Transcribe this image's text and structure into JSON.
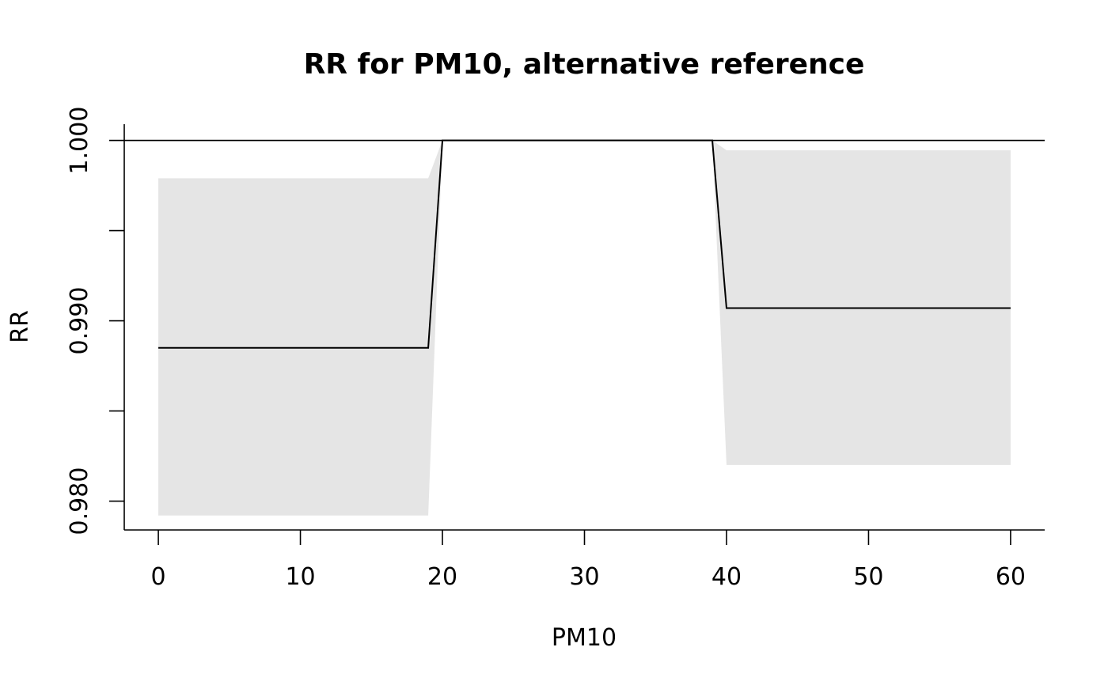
{
  "chart_data": {
    "type": "line",
    "title": "RR for PM10, alternative reference",
    "xlabel": "PM10",
    "ylabel": "RR",
    "xlim": [
      -2.4,
      62.4
    ],
    "ylim": [
      0.9784,
      1.0009
    ],
    "x_ticks": [
      {
        "value": 0,
        "label": "0"
      },
      {
        "value": 10,
        "label": "10"
      },
      {
        "value": 20,
        "label": "20"
      },
      {
        "value": 30,
        "label": "30"
      },
      {
        "value": 40,
        "label": "40"
      },
      {
        "value": 50,
        "label": "50"
      },
      {
        "value": 60,
        "label": "60"
      }
    ],
    "y_ticks": [
      {
        "value": 0.98,
        "label": "0.980"
      },
      {
        "value": 0.985,
        "label": ""
      },
      {
        "value": 0.99,
        "label": "0.990"
      },
      {
        "value": 0.995,
        "label": ""
      },
      {
        "value": 1.0,
        "label": "1.000"
      }
    ],
    "reference_line": 1.0,
    "series": [
      {
        "x": [
          0,
          19,
          20,
          39,
          40,
          60
        ],
        "y": [
          0.9885,
          0.9885,
          1.0,
          1.0,
          0.9907,
          0.9907
        ],
        "lower": [
          0.9792,
          0.9792,
          1.0,
          1.0,
          0.982,
          0.982
        ],
        "upper": [
          0.9979,
          0.9979,
          1.0,
          1.0,
          0.99945,
          0.99945
        ]
      }
    ],
    "colors": {
      "line": "#000000",
      "band": "#e5e5e5"
    },
    "grid": false
  }
}
